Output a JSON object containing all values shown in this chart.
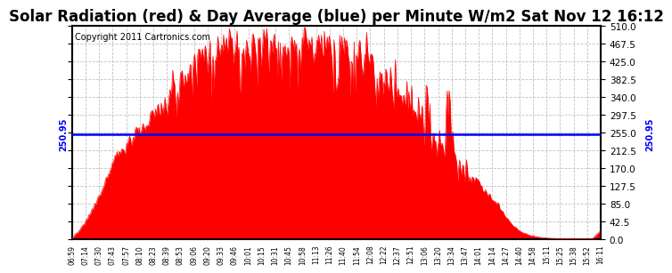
{
  "title": "Solar Radiation (red) & Day Average (blue) per Minute W/m2 Sat Nov 12 16:12",
  "copyright": "Copyright 2011 Cartronics.com",
  "avg_value": 250.95,
  "y_min": 0,
  "y_max": 510,
  "y_ticks": [
    0,
    42.5,
    85.0,
    127.5,
    170.0,
    212.5,
    255.0,
    297.5,
    340.0,
    382.5,
    425.0,
    467.5,
    510.0
  ],
  "fill_color": "#FF0000",
  "line_color": "#0000FF",
  "bg_color": "#FFFFFF",
  "grid_color": "#BBBBBB",
  "title_fontsize": 12,
  "copyright_fontsize": 7,
  "avg_label": "250.95",
  "x_tick_labels": [
    "06:59",
    "07:14",
    "07:30",
    "07:43",
    "07:57",
    "08:10",
    "08:23",
    "08:39",
    "08:53",
    "09:06",
    "09:20",
    "09:33",
    "09:46",
    "10:01",
    "10:15",
    "10:31",
    "10:45",
    "10:58",
    "11:13",
    "11:26",
    "11:40",
    "11:54",
    "12:08",
    "12:22",
    "12:37",
    "12:51",
    "13:06",
    "13:20",
    "13:34",
    "13:47",
    "14:01",
    "14:14",
    "14:27",
    "14:40",
    "14:58",
    "15:11",
    "15:25",
    "15:38",
    "15:52",
    "16:11"
  ]
}
